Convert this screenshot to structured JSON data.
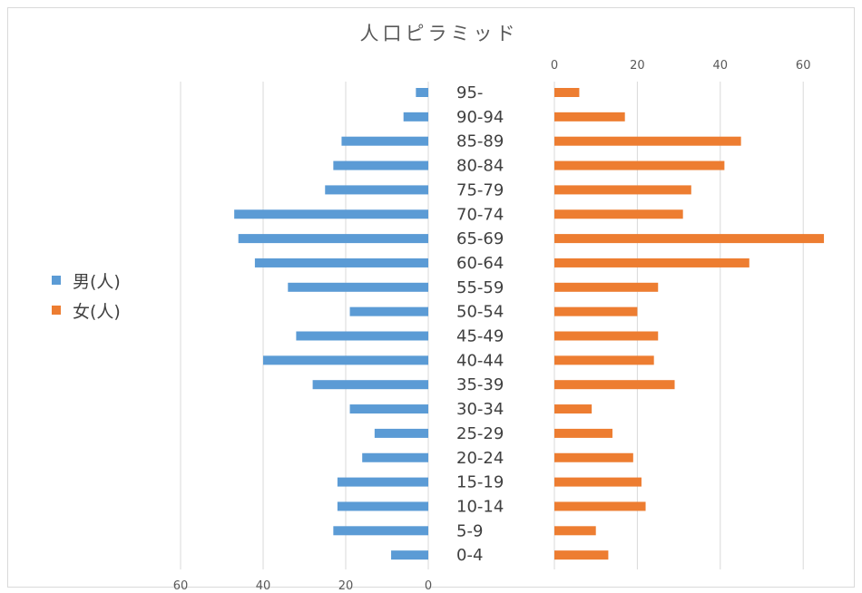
{
  "chart_data": {
    "type": "bar",
    "orientation": "horizontal",
    "subtype": "population-pyramid",
    "title": "人口ピラミッド",
    "categories": [
      "95-",
      "90-94",
      "85-89",
      "80-84",
      "75-79",
      "70-74",
      "65-69",
      "60-64",
      "55-59",
      "50-54",
      "45-49",
      "40-44",
      "35-39",
      "30-34",
      "25-29",
      "20-24",
      "15-19",
      "10-14",
      "5-9",
      "0-4"
    ],
    "series": [
      {
        "name": "男(人)",
        "color": "#5b9bd5",
        "side": "left",
        "values": [
          3,
          6,
          21,
          23,
          25,
          47,
          46,
          42,
          34,
          19,
          32,
          40,
          28,
          19,
          13,
          16,
          22,
          22,
          23,
          9
        ]
      },
      {
        "name": "女(人)",
        "color": "#ed7d31",
        "side": "right",
        "values": [
          6,
          17,
          45,
          41,
          33,
          31,
          65,
          47,
          25,
          20,
          25,
          24,
          29,
          9,
          14,
          19,
          21,
          22,
          10,
          13
        ]
      }
    ],
    "male_axis": {
      "ticks": [
        "60",
        "40",
        "20",
        "0"
      ],
      "range": [
        0,
        60
      ],
      "reversed": true,
      "position": "bottom"
    },
    "female_axis": {
      "ticks": [
        "0",
        "20",
        "40",
        "60"
      ],
      "range": [
        0,
        60
      ],
      "position": "top"
    },
    "grid": true,
    "legend_position": "left"
  }
}
